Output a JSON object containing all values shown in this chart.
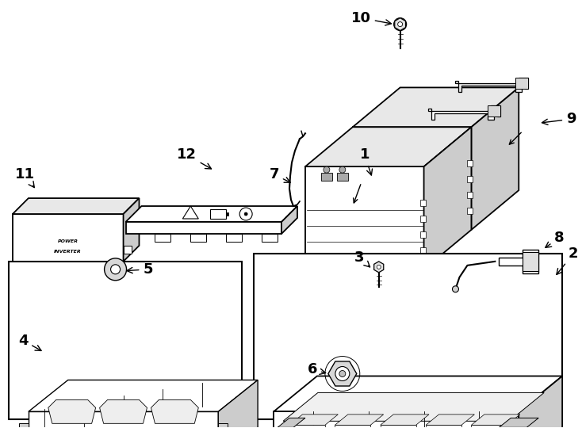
{
  "background_color": "#ffffff",
  "line_color": "#000000",
  "fig_width": 7.34,
  "fig_height": 5.4,
  "dpi": 100,
  "label_fontsize": 13,
  "small_fontsize": 5,
  "parts_color": "#ffffff",
  "shade_top": "#e8e8e8",
  "shade_right": "#cccccc",
  "shade_dark": "#aaaaaa"
}
